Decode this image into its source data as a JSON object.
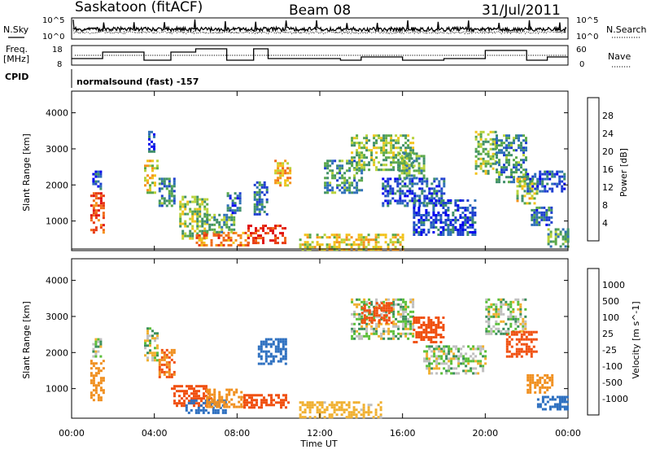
{
  "header": {
    "site": "Saskatoon (fitACF)",
    "beam": "Beam 08",
    "date": "31/Jul/2011"
  },
  "params": {
    "nsky_label": "N.Sky",
    "nsearch_label": "N.Search",
    "freq_label": "Freq.",
    "freq_unit": "[MHz]",
    "nave_label": "Nave",
    "cpid_label": "CPID",
    "cpid_value": "normalsound (fast) -157",
    "noise_ticks_left": [
      "10^5",
      "10^0"
    ],
    "noise_ticks_right": [
      "10^5",
      "10^0"
    ],
    "freq_ticks": [
      "18",
      "8"
    ],
    "nave_ticks": [
      "60",
      "0"
    ]
  },
  "panels": {
    "power_ylabel": "Slant Range [km]",
    "velocity_ylabel": "Slant Range [km]",
    "xlabel": "Time UT"
  },
  "colorbars": {
    "power": {
      "label": "Power [dB]",
      "ticks": [
        "28",
        "24",
        "20",
        "16",
        "12",
        "8",
        "4"
      ],
      "colors": [
        "#0000ee",
        "#1f3fd0",
        "#2e6fb8",
        "#3f8f6a",
        "#5aa84a",
        "#b8d23a",
        "#f2c21a",
        "#f5931a",
        "#f06a18",
        "#e83a12",
        "#e01010"
      ]
    },
    "velocity": {
      "label": "Velocity [m s^-1]",
      "ticks": [
        "1000",
        "500",
        "100",
        "25",
        "-25",
        "-100",
        "-500",
        "-1000"
      ],
      "colors": [
        "#1a3fc0",
        "#2e70c0",
        "#3b8f5a",
        "#5bbf3a",
        "#bfbfbf",
        "#f0b030",
        "#f09020",
        "#f05010",
        "#e01010"
      ]
    }
  },
  "chart_data": [
    {
      "type": "heatmap",
      "title": "Power",
      "xlabel": "Time UT",
      "ylabel": "Slant Range [km]",
      "xlim": [
        "00:00",
        "24:00"
      ],
      "x_ticks": [
        "00:00",
        "04:00",
        "08:00",
        "12:00",
        "16:00",
        "20:00",
        "00:00"
      ],
      "ylim": [
        180,
        4600
      ],
      "y_ticks": [
        1000,
        2000,
        3000,
        4000
      ],
      "colorbar_label": "Power [dB]",
      "colorbar_ticks": [
        4,
        8,
        12,
        16,
        20,
        24,
        28
      ],
      "blobs": [
        {
          "t": [
            0.9,
            1.6
          ],
          "r": [
            700,
            1800
          ],
          "v": 26
        },
        {
          "t": [
            1.0,
            1.4
          ],
          "r": [
            1900,
            2400
          ],
          "v": 6
        },
        {
          "t": [
            3.5,
            4.2
          ],
          "r": [
            1800,
            2700
          ],
          "v": 18
        },
        {
          "t": [
            3.7,
            4.0
          ],
          "r": [
            2900,
            3500
          ],
          "v": 6
        },
        {
          "t": [
            4.2,
            5.0
          ],
          "r": [
            1400,
            2200
          ],
          "v": 10
        },
        {
          "t": [
            5.2,
            6.6
          ],
          "r": [
            500,
            1700
          ],
          "v": 14
        },
        {
          "t": [
            6.0,
            8.5
          ],
          "r": [
            350,
            700
          ],
          "v": 24
        },
        {
          "t": [
            6.5,
            7.8
          ],
          "r": [
            700,
            1200
          ],
          "v": 12
        },
        {
          "t": [
            7.5,
            8.2
          ],
          "r": [
            1200,
            1800
          ],
          "v": 8
        },
        {
          "t": [
            8.5,
            10.3
          ],
          "r": [
            400,
            900
          ],
          "v": 28
        },
        {
          "t": [
            8.8,
            9.5
          ],
          "r": [
            1200,
            2100
          ],
          "v": 8
        },
        {
          "t": [
            9.8,
            10.6
          ],
          "r": [
            2000,
            2700
          ],
          "v": 20
        },
        {
          "t": [
            11.0,
            16.0
          ],
          "r": [
            200,
            650
          ],
          "v": 18
        },
        {
          "t": [
            12.2,
            14.0
          ],
          "r": [
            1800,
            2700
          ],
          "v": 10
        },
        {
          "t": [
            13.5,
            16.5
          ],
          "r": [
            2400,
            3400
          ],
          "v": 14
        },
        {
          "t": [
            15.0,
            18.0
          ],
          "r": [
            1400,
            2200
          ],
          "v": 6
        },
        {
          "t": [
            15.8,
            17.0
          ],
          "r": [
            2200,
            2900
          ],
          "v": 12
        },
        {
          "t": [
            16.5,
            19.5
          ],
          "r": [
            600,
            1600
          ],
          "v": 6
        },
        {
          "t": [
            19.5,
            20.5
          ],
          "r": [
            2300,
            3500
          ],
          "v": 14
        },
        {
          "t": [
            20.5,
            22.0
          ],
          "r": [
            2100,
            3400
          ],
          "v": 10
        },
        {
          "t": [
            21.5,
            22.5
          ],
          "r": [
            1500,
            2200
          ],
          "v": 16
        },
        {
          "t": [
            22.0,
            23.8
          ],
          "r": [
            1800,
            2400
          ],
          "v": 6
        },
        {
          "t": [
            22.2,
            23.2
          ],
          "r": [
            900,
            1400
          ],
          "v": 8
        },
        {
          "t": [
            23.0,
            24.0
          ],
          "r": [
            300,
            800
          ],
          "v": 12
        }
      ]
    },
    {
      "type": "heatmap",
      "title": "Velocity",
      "xlabel": "Time UT",
      "ylabel": "Slant Range [km]",
      "xlim": [
        "00:00",
        "24:00"
      ],
      "x_ticks": [
        "00:00",
        "04:00",
        "08:00",
        "12:00",
        "16:00",
        "20:00",
        "00:00"
      ],
      "ylim": [
        180,
        4600
      ],
      "y_ticks": [
        1000,
        2000,
        3000,
        4000
      ],
      "colorbar_label": "Velocity [m s^-1]",
      "colorbar_ticks": [
        1000,
        500,
        100,
        25,
        -25,
        -100,
        -500,
        -1000
      ],
      "blobs": [
        {
          "t": [
            0.9,
            1.6
          ],
          "r": [
            700,
            1800
          ],
          "v": -150
        },
        {
          "t": [
            1.0,
            1.4
          ],
          "r": [
            1900,
            2400
          ],
          "v": 0
        },
        {
          "t": [
            3.5,
            4.2
          ],
          "r": [
            1800,
            2700
          ],
          "v": 0
        },
        {
          "t": [
            4.2,
            5.0
          ],
          "r": [
            1300,
            2100
          ],
          "v": -300
        },
        {
          "t": [
            4.8,
            6.8
          ],
          "r": [
            500,
            1100
          ],
          "v": -400
        },
        {
          "t": [
            5.5,
            7.5
          ],
          "r": [
            300,
            700
          ],
          "v": 150
        },
        {
          "t": [
            6.5,
            8.3
          ],
          "r": [
            500,
            1000
          ],
          "v": -200
        },
        {
          "t": [
            8.3,
            10.5
          ],
          "r": [
            500,
            850
          ],
          "v": -500
        },
        {
          "t": [
            9.0,
            10.3
          ],
          "r": [
            1700,
            2400
          ],
          "v": 150
        },
        {
          "t": [
            11.0,
            15.0
          ],
          "r": [
            200,
            650
          ],
          "v": -60
        },
        {
          "t": [
            13.5,
            16.5
          ],
          "r": [
            2400,
            3500
          ],
          "v": 0
        },
        {
          "t": [
            14.0,
            15.5
          ],
          "r": [
            2800,
            3400
          ],
          "v": -500
        },
        {
          "t": [
            16.5,
            18.0
          ],
          "r": [
            2300,
            3000
          ],
          "v": -500
        },
        {
          "t": [
            17.0,
            20.0
          ],
          "r": [
            1400,
            2200
          ],
          "v": 0
        },
        {
          "t": [
            20.0,
            22.0
          ],
          "r": [
            2500,
            3500
          ],
          "v": 0
        },
        {
          "t": [
            21.0,
            22.5
          ],
          "r": [
            1900,
            2600
          ],
          "v": -400
        },
        {
          "t": [
            22.0,
            23.2
          ],
          "r": [
            900,
            1400
          ],
          "v": -150
        },
        {
          "t": [
            22.5,
            24.0
          ],
          "r": [
            400,
            800
          ],
          "v": 150
        }
      ]
    }
  ]
}
